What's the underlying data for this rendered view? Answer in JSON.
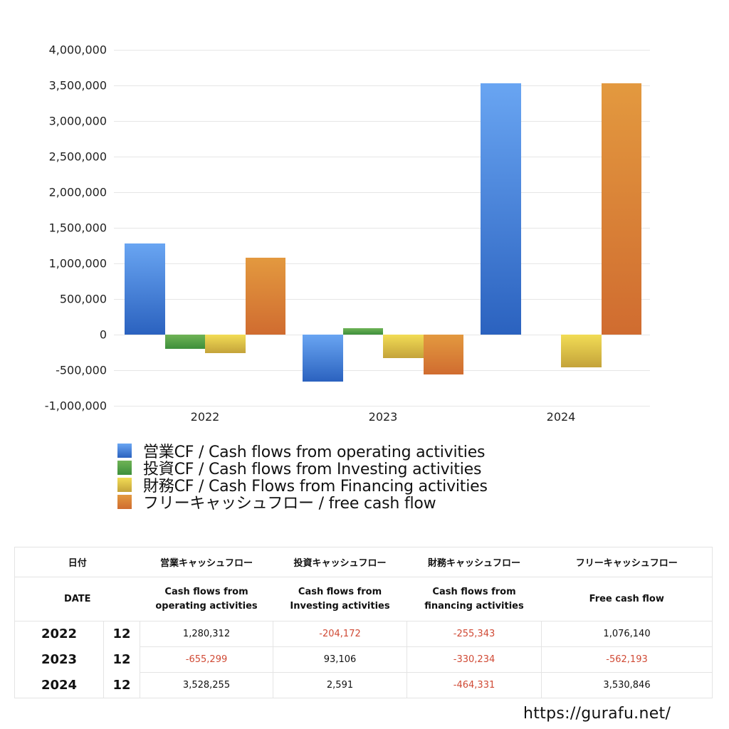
{
  "chart_data": {
    "type": "bar",
    "title": "",
    "xlabel": "",
    "ylabel": "",
    "categories": [
      "2022",
      "2023",
      "2024"
    ],
    "series": [
      {
        "name": "営業CF / Cash flows from operating activities",
        "values": [
          1280312,
          -655299,
          3528255
        ],
        "color_top": "#69a5f2",
        "color_bottom": "#2b62bf"
      },
      {
        "name": "投資CF / Cash flows from Investing activities",
        "values": [
          -204172,
          93106,
          2591
        ],
        "color_top": "#6fb356",
        "color_bottom": "#3d8f3b"
      },
      {
        "name": "財務CF / Cash Flows from Financing activities",
        "values": [
          -255343,
          -330234,
          -464331
        ],
        "color_top": "#f2dc55",
        "color_bottom": "#c4a33a"
      },
      {
        "name": "フリーキャッシュフロー / free cash flow",
        "values": [
          1076140,
          -562193,
          3530846
        ],
        "color_top": "#e3993f",
        "color_bottom": "#d06c30"
      }
    ],
    "ylim": [
      -1000000,
      4000000
    ],
    "yticks": [
      4000000,
      3500000,
      3000000,
      2500000,
      2000000,
      1500000,
      1000000,
      500000,
      0,
      -500000,
      -1000000
    ],
    "ytick_labels": [
      "4,000,000",
      "3,500,000",
      "3,000,000",
      "2,500,000",
      "2,000,000",
      "1,500,000",
      "1,000,000",
      "500,000",
      "0",
      "-500,000",
      "-1,000,000"
    ],
    "grid": true,
    "legend_position": "bottom"
  },
  "legend": [
    {
      "label": "営業CF / Cash flows from operating activities",
      "color": "#4a86dc"
    },
    {
      "label": "投資CF / Cash flows from Investing activities",
      "color": "#4e9e45"
    },
    {
      "label": "財務CF / Cash Flows from Financing activities",
      "color": "#e0c448"
    },
    {
      "label": "フリーキャッシュフロー / free cash flow",
      "color": "#da8236"
    }
  ],
  "table": {
    "header_jp": {
      "date": "日付",
      "operating": "営業キャッシュフロー",
      "investing": "投資キャッシュフロー",
      "financing": "財務キャッシュフロー",
      "free": "フリーキャッシュフロー"
    },
    "header_en": {
      "date": "DATE",
      "operating_1": "Cash flows from",
      "operating_2": "operating activities",
      "investing_1": "Cash flows from",
      "investing_2": "Investing activities",
      "financing_1": "Cash flows from",
      "financing_2": "financing activities",
      "free": "Free cash flow"
    },
    "rows": [
      {
        "year": "2022",
        "month": "12",
        "operating": "1,280,312",
        "investing": "-204,172",
        "financing": "-255,343",
        "free": "1,076,140"
      },
      {
        "year": "2023",
        "month": "12",
        "operating": "-655,299",
        "investing": "93,106",
        "financing": "-330,234",
        "free": "-562,193"
      },
      {
        "year": "2024",
        "month": "12",
        "operating": "3,528,255",
        "investing": "2,591",
        "financing": "-464,331",
        "free": "3,530,846"
      }
    ]
  },
  "footer": {
    "url": "https://gurafu.net/"
  },
  "colors": {
    "negative": "#d04a35",
    "grid": "#e6e6e6",
    "border": "#e4e4e4"
  }
}
